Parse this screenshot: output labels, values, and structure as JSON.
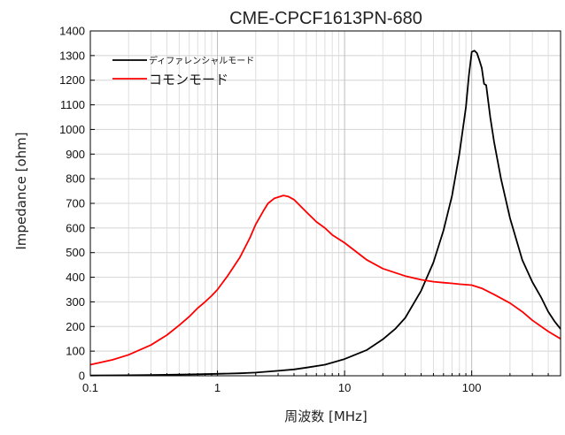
{
  "chart_data": {
    "type": "line",
    "title": "CME-CPCF1613PN-680",
    "xlabel": "周波数 [MHz]",
    "ylabel": "Impedance [ohm]",
    "x_scale": "log",
    "xlim": [
      0.1,
      500
    ],
    "ylim": [
      0,
      1400
    ],
    "x_ticks": [
      0.1,
      1,
      10,
      100
    ],
    "x_tick_labels": [
      "0.1",
      "1",
      "10",
      "100"
    ],
    "y_ticks": [
      0,
      100,
      200,
      300,
      400,
      500,
      600,
      700,
      800,
      900,
      1000,
      1100,
      1200,
      1300,
      1400
    ],
    "y_tick_labels": [
      "0",
      "100",
      "200",
      "300",
      "400",
      "500",
      "600",
      "700",
      "800",
      "900",
      "1000",
      "1100",
      "1200",
      "1300",
      "1400"
    ],
    "grid": true,
    "legend_position": "top-left",
    "series": [
      {
        "name": "ディファレンシャルモード",
        "color": "#000000",
        "points": [
          [
            0.1,
            1
          ],
          [
            0.2,
            2
          ],
          [
            0.3,
            3
          ],
          [
            0.5,
            5
          ],
          [
            0.7,
            6
          ],
          [
            1,
            8
          ],
          [
            1.5,
            10
          ],
          [
            2,
            13
          ],
          [
            3,
            20
          ],
          [
            4,
            26
          ],
          [
            5,
            33
          ],
          [
            7,
            45
          ],
          [
            10,
            68
          ],
          [
            15,
            105
          ],
          [
            20,
            148
          ],
          [
            25,
            190
          ],
          [
            30,
            235
          ],
          [
            40,
            345
          ],
          [
            50,
            460
          ],
          [
            60,
            590
          ],
          [
            70,
            730
          ],
          [
            80,
            900
          ],
          [
            90,
            1090
          ],
          [
            95,
            1220
          ],
          [
            100,
            1315
          ],
          [
            105,
            1320
          ],
          [
            110,
            1310
          ],
          [
            115,
            1280
          ],
          [
            120,
            1250
          ],
          [
            125,
            1185
          ],
          [
            130,
            1180
          ],
          [
            140,
            1050
          ],
          [
            150,
            950
          ],
          [
            170,
            800
          ],
          [
            200,
            640
          ],
          [
            250,
            470
          ],
          [
            300,
            380
          ],
          [
            350,
            320
          ],
          [
            400,
            260
          ],
          [
            450,
            220
          ],
          [
            500,
            190
          ]
        ]
      },
      {
        "name": "コモンモード",
        "color": "#ff0000",
        "points": [
          [
            0.1,
            45
          ],
          [
            0.15,
            65
          ],
          [
            0.2,
            85
          ],
          [
            0.3,
            125
          ],
          [
            0.4,
            165
          ],
          [
            0.5,
            205
          ],
          [
            0.6,
            240
          ],
          [
            0.7,
            275
          ],
          [
            0.8,
            300
          ],
          [
            0.9,
            325
          ],
          [
            1,
            350
          ],
          [
            1.2,
            405
          ],
          [
            1.5,
            480
          ],
          [
            1.8,
            560
          ],
          [
            2,
            615
          ],
          [
            2.3,
            670
          ],
          [
            2.5,
            700
          ],
          [
            2.8,
            720
          ],
          [
            3,
            725
          ],
          [
            3.3,
            732
          ],
          [
            3.6,
            728
          ],
          [
            4,
            715
          ],
          [
            5,
            665
          ],
          [
            6,
            625
          ],
          [
            7,
            600
          ],
          [
            8,
            572
          ],
          [
            10,
            540
          ],
          [
            15,
            470
          ],
          [
            20,
            435
          ],
          [
            30,
            405
          ],
          [
            40,
            390
          ],
          [
            50,
            382
          ],
          [
            60,
            378
          ],
          [
            70,
            375
          ],
          [
            80,
            372
          ],
          [
            100,
            368
          ],
          [
            120,
            355
          ],
          [
            150,
            330
          ],
          [
            200,
            295
          ],
          [
            250,
            260
          ],
          [
            300,
            225
          ],
          [
            400,
            180
          ],
          [
            500,
            150
          ]
        ]
      }
    ]
  }
}
